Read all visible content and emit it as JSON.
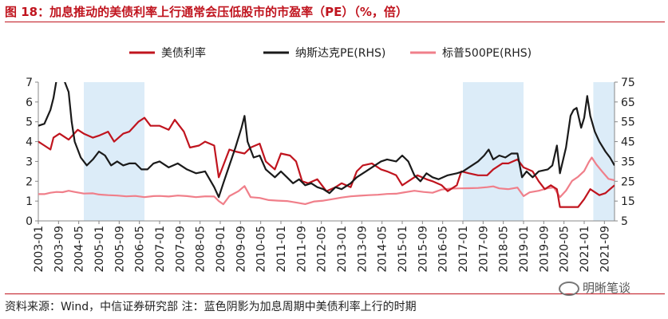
{
  "figure": {
    "title": "图 18：加息推动的美债利率上行通常会压低股市的市盈率（PE）（%，倍）",
    "source": "资料来源：Wind，中信证券研究部    注：蓝色阴影为加息周期中美债利率上行的时期",
    "watermark": "明晰笔谈"
  },
  "colors": {
    "treasury": "#c0141e",
    "nasdaq": "#1a1a1a",
    "sp500": "#f07f8a",
    "shade": "#dcecf8",
    "axis": "#888888",
    "accent": "#c0141e"
  },
  "chart_data": {
    "type": "line",
    "title": "加息推动的美债利率上行通常会压低股市的市盈率（PE）",
    "legend": [
      "美债利率",
      "纳斯达克PE(RHS)",
      "标普500PE(RHS)"
    ],
    "legend_position": "top",
    "x_range": [
      2003.0,
      2022.0
    ],
    "x_tick_labels": [
      "2003-01",
      "2003-09",
      "2004-05",
      "2005-01",
      "2005-09",
      "2006-05",
      "2007-01",
      "2007-09",
      "2008-05",
      "2009-01",
      "2009-09",
      "2010-05",
      "2011-01",
      "2011-09",
      "2012-05",
      "2013-01",
      "2013-09",
      "2014-05",
      "2015-01",
      "2015-09",
      "2016-05",
      "2017-01",
      "2017-09",
      "2018-05",
      "2019-01",
      "2019-09",
      "2020-05",
      "2021-01",
      "2021-09"
    ],
    "y_left": {
      "min": 0,
      "max": 7,
      "ticks": [
        0,
        1,
        2,
        3,
        4,
        5,
        6,
        7
      ],
      "label": "%"
    },
    "y_right": {
      "min": 5,
      "max": 75,
      "ticks": [
        5,
        15,
        25,
        35,
        45,
        55,
        65,
        75
      ],
      "label": "倍"
    },
    "shaded_periods": [
      [
        2004.5,
        2006.5
      ],
      [
        2017.0,
        2019.0
      ],
      [
        2021.3,
        2022.0
      ]
    ],
    "series": [
      {
        "name": "美债利率",
        "axis": "left",
        "points": [
          [
            2003.0,
            4.0
          ],
          [
            2003.2,
            3.8
          ],
          [
            2003.4,
            3.6
          ],
          [
            2003.5,
            4.2
          ],
          [
            2003.7,
            4.4
          ],
          [
            2004.0,
            4.1
          ],
          [
            2004.3,
            4.6
          ],
          [
            2004.5,
            4.4
          ],
          [
            2004.8,
            4.2
          ],
          [
            2005.0,
            4.3
          ],
          [
            2005.3,
            4.5
          ],
          [
            2005.5,
            4.0
          ],
          [
            2005.8,
            4.4
          ],
          [
            2006.0,
            4.5
          ],
          [
            2006.3,
            5.0
          ],
          [
            2006.5,
            5.2
          ],
          [
            2006.7,
            4.8
          ],
          [
            2007.0,
            4.8
          ],
          [
            2007.3,
            4.6
          ],
          [
            2007.5,
            5.1
          ],
          [
            2007.8,
            4.5
          ],
          [
            2008.0,
            3.7
          ],
          [
            2008.3,
            3.8
          ],
          [
            2008.5,
            4.0
          ],
          [
            2008.8,
            3.8
          ],
          [
            2008.95,
            2.2
          ],
          [
            2009.1,
            2.8
          ],
          [
            2009.3,
            3.6
          ],
          [
            2009.5,
            3.5
          ],
          [
            2009.8,
            3.4
          ],
          [
            2010.0,
            3.7
          ],
          [
            2010.3,
            3.9
          ],
          [
            2010.5,
            3.0
          ],
          [
            2010.8,
            2.6
          ],
          [
            2011.0,
            3.4
          ],
          [
            2011.3,
            3.3
          ],
          [
            2011.5,
            3.0
          ],
          [
            2011.7,
            2.0
          ],
          [
            2011.9,
            1.9
          ],
          [
            2012.2,
            2.1
          ],
          [
            2012.5,
            1.5
          ],
          [
            2012.8,
            1.7
          ],
          [
            2013.0,
            1.9
          ],
          [
            2013.3,
            1.7
          ],
          [
            2013.5,
            2.5
          ],
          [
            2013.7,
            2.8
          ],
          [
            2014.0,
            2.9
          ],
          [
            2014.3,
            2.6
          ],
          [
            2014.5,
            2.5
          ],
          [
            2014.8,
            2.3
          ],
          [
            2015.0,
            1.8
          ],
          [
            2015.3,
            2.1
          ],
          [
            2015.5,
            2.3
          ],
          [
            2015.8,
            2.1
          ],
          [
            2016.0,
            2.0
          ],
          [
            2016.3,
            1.8
          ],
          [
            2016.5,
            1.5
          ],
          [
            2016.8,
            1.8
          ],
          [
            2016.95,
            2.5
          ],
          [
            2017.2,
            2.4
          ],
          [
            2017.5,
            2.3
          ],
          [
            2017.8,
            2.3
          ],
          [
            2018.0,
            2.6
          ],
          [
            2018.3,
            2.9
          ],
          [
            2018.5,
            2.9
          ],
          [
            2018.8,
            3.1
          ],
          [
            2019.0,
            2.7
          ],
          [
            2019.3,
            2.5
          ],
          [
            2019.5,
            2.0
          ],
          [
            2019.7,
            1.6
          ],
          [
            2019.9,
            1.8
          ],
          [
            2020.1,
            1.6
          ],
          [
            2020.2,
            0.7
          ],
          [
            2020.5,
            0.7
          ],
          [
            2020.8,
            0.7
          ],
          [
            2021.0,
            1.1
          ],
          [
            2021.2,
            1.6
          ],
          [
            2021.5,
            1.3
          ],
          [
            2021.7,
            1.4
          ],
          [
            2021.85,
            1.6
          ],
          [
            2022.0,
            1.8
          ]
        ]
      },
      {
        "name": "纳斯达克PE(RHS)",
        "axis": "right",
        "points": [
          [
            2003.0,
            53
          ],
          [
            2003.2,
            54
          ],
          [
            2003.4,
            61
          ],
          [
            2003.5,
            67
          ],
          [
            2003.6,
            76
          ],
          [
            2003.7,
            76
          ],
          [
            2003.85,
            76
          ],
          [
            2004.0,
            70
          ],
          [
            2004.1,
            55
          ],
          [
            2004.2,
            45
          ],
          [
            2004.4,
            37
          ],
          [
            2004.6,
            33
          ],
          [
            2004.8,
            36
          ],
          [
            2005.0,
            40
          ],
          [
            2005.2,
            38
          ],
          [
            2005.4,
            33
          ],
          [
            2005.6,
            35
          ],
          [
            2005.8,
            33
          ],
          [
            2006.0,
            34
          ],
          [
            2006.2,
            34
          ],
          [
            2006.4,
            31
          ],
          [
            2006.6,
            31
          ],
          [
            2006.8,
            34
          ],
          [
            2007.0,
            35
          ],
          [
            2007.3,
            32
          ],
          [
            2007.6,
            34
          ],
          [
            2007.9,
            31
          ],
          [
            2008.2,
            29
          ],
          [
            2008.5,
            30
          ],
          [
            2008.8,
            22
          ],
          [
            2008.95,
            17
          ],
          [
            2009.1,
            24
          ],
          [
            2009.3,
            33
          ],
          [
            2009.5,
            42
          ],
          [
            2009.7,
            52
          ],
          [
            2009.8,
            58
          ],
          [
            2009.9,
            45
          ],
          [
            2010.1,
            37
          ],
          [
            2010.3,
            38
          ],
          [
            2010.5,
            31
          ],
          [
            2010.8,
            27
          ],
          [
            2011.0,
            30
          ],
          [
            2011.2,
            27
          ],
          [
            2011.4,
            24
          ],
          [
            2011.6,
            26
          ],
          [
            2011.8,
            23
          ],
          [
            2012.0,
            24
          ],
          [
            2012.2,
            22
          ],
          [
            2012.4,
            21
          ],
          [
            2012.6,
            19
          ],
          [
            2012.8,
            22
          ],
          [
            2013.0,
            21
          ],
          [
            2013.3,
            24
          ],
          [
            2013.5,
            27
          ],
          [
            2013.8,
            30
          ],
          [
            2014.0,
            32
          ],
          [
            2014.3,
            35
          ],
          [
            2014.5,
            36
          ],
          [
            2014.8,
            35
          ],
          [
            2015.0,
            38
          ],
          [
            2015.2,
            35
          ],
          [
            2015.4,
            28
          ],
          [
            2015.6,
            25
          ],
          [
            2015.8,
            29
          ],
          [
            2016.0,
            27
          ],
          [
            2016.2,
            26
          ],
          [
            2016.5,
            28
          ],
          [
            2016.8,
            29
          ],
          [
            2017.0,
            30
          ],
          [
            2017.3,
            33
          ],
          [
            2017.5,
            35
          ],
          [
            2017.7,
            38
          ],
          [
            2017.85,
            41
          ],
          [
            2018.0,
            36
          ],
          [
            2018.2,
            38
          ],
          [
            2018.4,
            37
          ],
          [
            2018.6,
            39
          ],
          [
            2018.8,
            39
          ],
          [
            2018.95,
            27
          ],
          [
            2019.1,
            30
          ],
          [
            2019.3,
            27
          ],
          [
            2019.5,
            30
          ],
          [
            2019.8,
            31
          ],
          [
            2019.95,
            33
          ],
          [
            2020.1,
            43
          ],
          [
            2020.2,
            29
          ],
          [
            2020.4,
            42
          ],
          [
            2020.55,
            58
          ],
          [
            2020.65,
            61
          ],
          [
            2020.75,
            62
          ],
          [
            2020.9,
            52
          ],
          [
            2021.0,
            57
          ],
          [
            2021.1,
            68
          ],
          [
            2021.2,
            58
          ],
          [
            2021.35,
            50
          ],
          [
            2021.5,
            45
          ],
          [
            2021.7,
            40
          ],
          [
            2021.85,
            37
          ],
          [
            2022.0,
            33
          ]
        ]
      },
      {
        "name": "标普500PE(RHS)",
        "axis": "right",
        "points": [
          [
            2003.0,
            18.5
          ],
          [
            2003.2,
            18.5
          ],
          [
            2003.4,
            19.2
          ],
          [
            2003.6,
            19.6
          ],
          [
            2003.8,
            19.5
          ],
          [
            2004.0,
            20.2
          ],
          [
            2004.2,
            19.6
          ],
          [
            2004.5,
            18.8
          ],
          [
            2004.8,
            18.9
          ],
          [
            2005.0,
            18.3
          ],
          [
            2005.3,
            18.0
          ],
          [
            2005.6,
            17.8
          ],
          [
            2005.9,
            17.4
          ],
          [
            2006.2,
            17.6
          ],
          [
            2006.5,
            17.0
          ],
          [
            2006.8,
            17.5
          ],
          [
            2007.0,
            17.6
          ],
          [
            2007.3,
            17.3
          ],
          [
            2007.6,
            17.8
          ],
          [
            2007.9,
            17.5
          ],
          [
            2008.2,
            17.0
          ],
          [
            2008.5,
            17.4
          ],
          [
            2008.8,
            17.3
          ],
          [
            2008.95,
            15.0
          ],
          [
            2009.1,
            13.4
          ],
          [
            2009.3,
            17.5
          ],
          [
            2009.6,
            20.0
          ],
          [
            2009.8,
            22.6
          ],
          [
            2010.0,
            17.0
          ],
          [
            2010.3,
            16.6
          ],
          [
            2010.6,
            15.5
          ],
          [
            2010.9,
            15.2
          ],
          [
            2011.2,
            15.0
          ],
          [
            2011.5,
            14.3
          ],
          [
            2011.8,
            13.5
          ],
          [
            2012.1,
            14.8
          ],
          [
            2012.4,
            15.2
          ],
          [
            2012.7,
            16.0
          ],
          [
            2013.0,
            16.8
          ],
          [
            2013.3,
            17.4
          ],
          [
            2013.6,
            17.7
          ],
          [
            2013.9,
            18.0
          ],
          [
            2014.2,
            18.2
          ],
          [
            2014.5,
            18.6
          ],
          [
            2014.8,
            18.7
          ],
          [
            2015.1,
            19.5
          ],
          [
            2015.4,
            20.2
          ],
          [
            2015.7,
            19.6
          ],
          [
            2016.0,
            19.2
          ],
          [
            2016.3,
            20.8
          ],
          [
            2016.6,
            21.3
          ],
          [
            2016.9,
            21.4
          ],
          [
            2017.2,
            21.5
          ],
          [
            2017.5,
            21.6
          ],
          [
            2017.8,
            22.0
          ],
          [
            2018.0,
            22.4
          ],
          [
            2018.2,
            21.4
          ],
          [
            2018.5,
            21.0
          ],
          [
            2018.8,
            21.8
          ],
          [
            2019.0,
            17.5
          ],
          [
            2019.2,
            19.4
          ],
          [
            2019.5,
            20.2
          ],
          [
            2019.8,
            21.5
          ],
          [
            2020.0,
            21.9
          ],
          [
            2020.2,
            17.0
          ],
          [
            2020.4,
            20.3
          ],
          [
            2020.6,
            25.2
          ],
          [
            2020.8,
            27.3
          ],
          [
            2021.0,
            30.2
          ],
          [
            2021.15,
            34.6
          ],
          [
            2021.25,
            37.0
          ],
          [
            2021.4,
            33.5
          ],
          [
            2021.6,
            29.8
          ],
          [
            2021.8,
            26.2
          ],
          [
            2022.0,
            25.5
          ]
        ]
      }
    ]
  }
}
